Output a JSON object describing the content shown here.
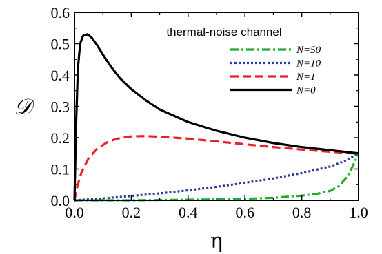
{
  "chart_data": {
    "type": "line",
    "title": "thermal-noise channel",
    "xlabel": "η",
    "ylabel": "𝒟",
    "xlim": [
      0.0,
      1.0
    ],
    "ylim": [
      0.0,
      0.6
    ],
    "xticks": [
      0.0,
      0.2,
      0.4,
      0.6,
      0.8,
      1.0
    ],
    "xtick_labels": [
      "0.0",
      "0.2",
      "0.4",
      "0.6",
      "0.8",
      "1.0"
    ],
    "yticks": [
      0.0,
      0.1,
      0.2,
      0.3,
      0.4,
      0.5,
      0.6
    ],
    "ytick_labels": [
      "0.0",
      "0.1",
      "0.2",
      "0.3",
      "0.4",
      "0.5",
      "0.6"
    ],
    "grid": false,
    "legend_position": "top-right",
    "series": [
      {
        "name": "N=50",
        "color": "#1fae2c",
        "dash": "dash-dot",
        "x": [
          0.0,
          0.1,
          0.2,
          0.3,
          0.4,
          0.5,
          0.6,
          0.7,
          0.8,
          0.85,
          0.9,
          0.93,
          0.96,
          0.98,
          1.0
        ],
        "y": [
          0.0,
          0.0,
          0.0,
          0.001,
          0.002,
          0.003,
          0.005,
          0.008,
          0.015,
          0.02,
          0.03,
          0.045,
          0.075,
          0.11,
          0.15
        ]
      },
      {
        "name": "N=10",
        "color": "#2b3a9e",
        "dash": "dotted",
        "x": [
          0.0,
          0.1,
          0.2,
          0.3,
          0.4,
          0.5,
          0.6,
          0.7,
          0.8,
          0.9,
          0.95,
          1.0
        ],
        "y": [
          0.0,
          0.006,
          0.014,
          0.022,
          0.032,
          0.043,
          0.056,
          0.07,
          0.087,
          0.108,
          0.125,
          0.15
        ]
      },
      {
        "name": "N=1",
        "color": "#e8232b",
        "dash": "dashed",
        "x": [
          0.0,
          0.01,
          0.025,
          0.05,
          0.08,
          0.12,
          0.16,
          0.2,
          0.25,
          0.3,
          0.4,
          0.5,
          0.6,
          0.7,
          0.8,
          0.9,
          1.0
        ],
        "y": [
          0.0,
          0.045,
          0.09,
          0.135,
          0.165,
          0.188,
          0.199,
          0.204,
          0.205,
          0.203,
          0.197,
          0.188,
          0.179,
          0.17,
          0.162,
          0.155,
          0.149
        ]
      },
      {
        "name": "N=0",
        "color": "#000000",
        "dash": "solid",
        "x": [
          0.0,
          0.006,
          0.012,
          0.02,
          0.03,
          0.045,
          0.06,
          0.08,
          0.1,
          0.13,
          0.16,
          0.2,
          0.25,
          0.3,
          0.35,
          0.4,
          0.5,
          0.6,
          0.7,
          0.8,
          0.9,
          1.0
        ],
        "y": [
          0.0,
          0.25,
          0.42,
          0.5,
          0.525,
          0.53,
          0.52,
          0.495,
          0.465,
          0.425,
          0.39,
          0.355,
          0.32,
          0.29,
          0.27,
          0.25,
          0.222,
          0.2,
          0.183,
          0.17,
          0.16,
          0.15
        ]
      }
    ]
  }
}
